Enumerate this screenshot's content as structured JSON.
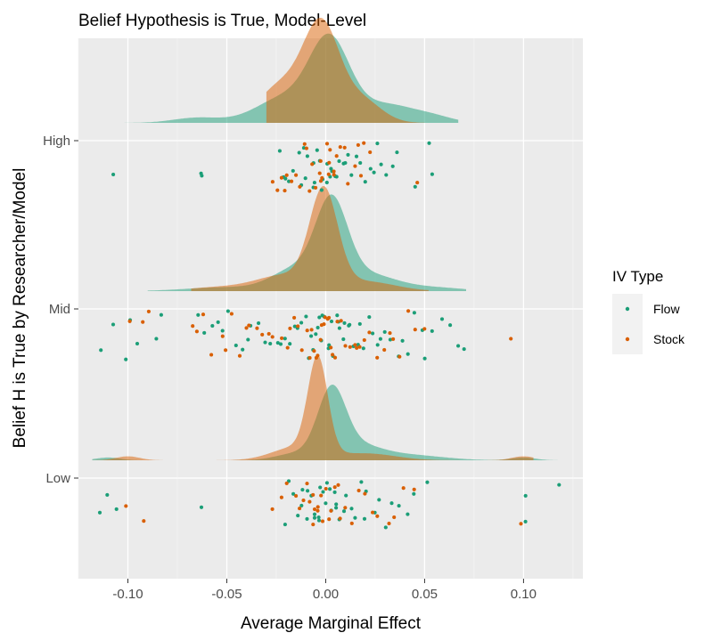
{
  "chart_data": {
    "type": "scatter",
    "title": "Belief Hypothesis is True, Model-Level",
    "xlabel": "Average Marginal Effect",
    "ylabel": "Belief H is True by Researcher/Model",
    "xlim": [
      -0.125,
      0.13
    ],
    "x_ticks": [
      -0.1,
      -0.05,
      0.0,
      0.05,
      0.1
    ],
    "x_tick_labels": [
      "-0.10",
      "-0.05",
      "0.00",
      "0.05",
      "0.10"
    ],
    "categories": [
      "Low",
      "Mid",
      "High"
    ],
    "grid": true,
    "legend": {
      "title": "IV Type",
      "position": "right",
      "entries": [
        "Flow",
        "Stock"
      ]
    },
    "colors": {
      "Flow": "#1b9e77",
      "Stock": "#d95f02",
      "panel_background": "#ebebeb",
      "grid_major": "#ffffff",
      "grid_minor": "#f4f4f4"
    },
    "series": [
      {
        "name": "Flow",
        "groups": {
          "High": [
            -0.107,
            -0.064,
            -0.063,
            -0.024,
            -0.022,
            -0.02,
            -0.018,
            -0.016,
            -0.014,
            -0.013,
            -0.011,
            -0.01,
            -0.009,
            -0.007,
            -0.006,
            -0.005,
            -0.004,
            -0.003,
            -0.002,
            -0.001,
            0.0,
            0.001,
            0.002,
            0.003,
            0.004,
            0.005,
            0.006,
            0.007,
            0.009,
            0.01,
            0.012,
            0.014,
            0.016,
            0.018,
            0.02,
            0.022,
            0.024,
            0.026,
            0.028,
            0.031,
            0.033,
            0.036,
            0.045,
            0.052,
            0.054
          ],
          "Mid": [
            -0.114,
            -0.108,
            -0.101,
            -0.099,
            -0.096,
            -0.086,
            -0.084,
            -0.064,
            -0.062,
            -0.058,
            -0.055,
            -0.052,
            -0.049,
            -0.046,
            -0.043,
            -0.04,
            -0.037,
            -0.034,
            -0.031,
            -0.028,
            -0.025,
            -0.022,
            -0.02,
            -0.018,
            -0.016,
            -0.014,
            -0.012,
            -0.01,
            -0.009,
            -0.008,
            -0.006,
            -0.005,
            -0.004,
            -0.003,
            -0.002,
            -0.001,
            0.0,
            0.001,
            0.002,
            0.003,
            0.004,
            0.005,
            0.006,
            0.007,
            0.008,
            0.009,
            0.011,
            0.012,
            0.014,
            0.016,
            0.018,
            0.02,
            0.022,
            0.024,
            0.026,
            0.028,
            0.03,
            0.033,
            0.036,
            0.039,
            0.042,
            0.045,
            0.048,
            0.051,
            0.054,
            0.058,
            0.062,
            0.066,
            0.07
          ],
          "Low": [
            -0.115,
            -0.111,
            -0.106,
            -0.062,
            -0.021,
            -0.019,
            -0.017,
            -0.015,
            -0.013,
            -0.011,
            -0.01,
            -0.009,
            -0.008,
            -0.006,
            -0.005,
            -0.004,
            -0.003,
            -0.002,
            -0.001,
            0.0,
            0.001,
            0.002,
            0.003,
            0.004,
            0.005,
            0.006,
            0.007,
            0.009,
            0.011,
            0.013,
            0.015,
            0.017,
            0.019,
            0.021,
            0.024,
            0.027,
            0.03,
            0.033,
            0.037,
            0.041,
            0.045,
            0.052,
            0.101,
            0.102,
            0.117
          ]
        }
      },
      {
        "name": "Stock",
        "groups": {
          "High": [
            -0.027,
            -0.025,
            -0.023,
            -0.021,
            -0.019,
            -0.017,
            -0.015,
            -0.013,
            -0.011,
            -0.009,
            -0.008,
            -0.006,
            -0.005,
            -0.004,
            -0.003,
            -0.002,
            -0.001,
            0.0,
            0.001,
            0.002,
            0.003,
            0.004,
            0.005,
            0.006,
            0.008,
            0.01,
            0.012,
            0.014,
            0.016,
            0.018,
            0.02,
            0.022,
            0.046
          ],
          "Mid": [
            -0.099,
            -0.093,
            -0.089,
            -0.067,
            -0.065,
            -0.061,
            -0.057,
            -0.053,
            -0.05,
            -0.047,
            -0.044,
            -0.041,
            -0.038,
            -0.035,
            -0.032,
            -0.029,
            -0.026,
            -0.023,
            -0.02,
            -0.018,
            -0.016,
            -0.014,
            -0.012,
            -0.01,
            -0.008,
            -0.007,
            -0.006,
            -0.005,
            -0.004,
            -0.003,
            -0.002,
            -0.001,
            0.0,
            0.001,
            0.002,
            0.003,
            0.004,
            0.005,
            0.006,
            0.008,
            0.01,
            0.012,
            0.014,
            0.016,
            0.018,
            0.02,
            0.023,
            0.026,
            0.029,
            0.032,
            0.035,
            0.038,
            0.042,
            0.046,
            0.05,
            0.093
          ],
          "Low": [
            -0.1,
            -0.091,
            -0.026,
            -0.022,
            -0.019,
            -0.016,
            -0.014,
            -0.012,
            -0.01,
            -0.008,
            -0.007,
            -0.006,
            -0.005,
            -0.004,
            -0.003,
            -0.002,
            -0.001,
            0.0,
            0.001,
            0.002,
            0.004,
            0.006,
            0.008,
            0.01,
            0.013,
            0.016,
            0.019,
            0.023,
            0.027,
            0.031,
            0.035,
            0.04,
            0.045,
            0.099
          ]
        }
      }
    ],
    "densities": [
      {
        "series": "Flow",
        "group": "High",
        "scale": 0.85,
        "components": [
          [
            0.002,
            0.01,
            0.5
          ],
          [
            -0.02,
            0.015,
            0.25
          ],
          [
            0.03,
            0.015,
            0.18
          ],
          [
            -0.065,
            0.012,
            0.04
          ],
          [
            0.055,
            0.01,
            0.03
          ]
        ],
        "range": [
          -0.118,
          0.067
        ]
      },
      {
        "series": "Stock",
        "group": "High",
        "scale": 1.0,
        "components": [
          [
            -0.002,
            0.009,
            0.55
          ],
          [
            -0.022,
            0.012,
            0.3
          ],
          [
            0.018,
            0.01,
            0.15
          ]
        ],
        "range": [
          -0.03,
          0.05
        ]
      },
      {
        "series": "Flow",
        "group": "Mid",
        "scale": 0.92,
        "components": [
          [
            0.003,
            0.008,
            0.5
          ],
          [
            -0.015,
            0.012,
            0.2
          ],
          [
            0.02,
            0.015,
            0.2
          ],
          [
            -0.05,
            0.02,
            0.06
          ],
          [
            0.055,
            0.015,
            0.04
          ]
        ],
        "range": [
          -0.09,
          0.071
        ]
      },
      {
        "series": "Stock",
        "group": "Mid",
        "scale": 1.0,
        "components": [
          [
            -0.001,
            0.007,
            0.6
          ],
          [
            -0.02,
            0.015,
            0.22
          ],
          [
            0.02,
            0.015,
            0.13
          ],
          [
            -0.055,
            0.015,
            0.05
          ]
        ],
        "range": [
          -0.068,
          0.052
        ]
      },
      {
        "series": "Flow",
        "group": "Low",
        "scale": 0.72,
        "components": [
          [
            0.003,
            0.007,
            0.55
          ],
          [
            0.015,
            0.012,
            0.2
          ],
          [
            0.04,
            0.018,
            0.12
          ],
          [
            -0.015,
            0.01,
            0.08
          ],
          [
            -0.11,
            0.006,
            0.02
          ],
          [
            0.1,
            0.006,
            0.02
          ]
        ],
        "range": [
          -0.118,
          0.12
        ]
      },
      {
        "series": "Stock",
        "group": "Low",
        "scale": 1.0,
        "components": [
          [
            -0.004,
            0.005,
            0.6
          ],
          [
            -0.015,
            0.012,
            0.2
          ],
          [
            0.02,
            0.015,
            0.13
          ],
          [
            -0.1,
            0.006,
            0.03
          ],
          [
            0.1,
            0.006,
            0.03
          ]
        ],
        "range": [
          -0.118,
          0.105
        ]
      }
    ]
  }
}
